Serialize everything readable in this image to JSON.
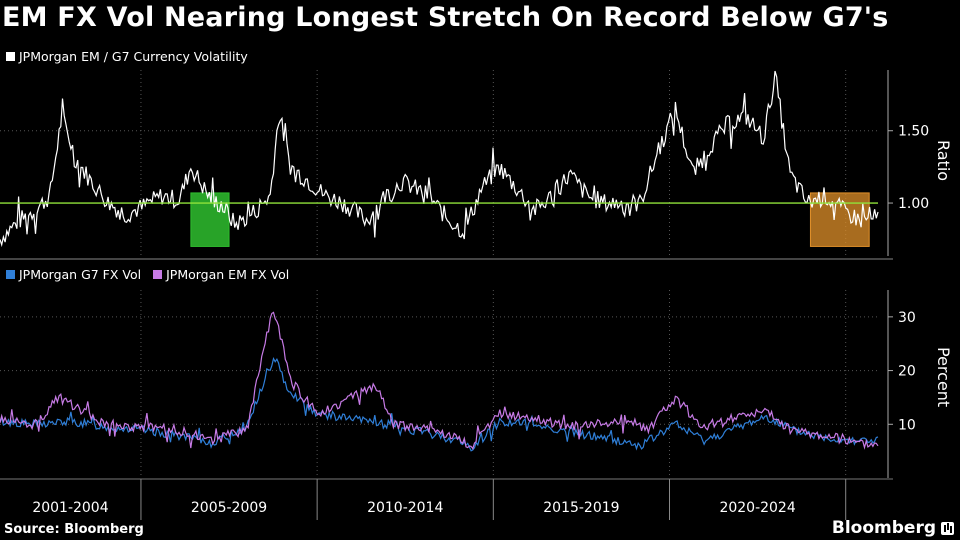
{
  "title": "EM FX Vol Nearing Longest Stretch On Record Below G7's",
  "source": "Source: Bloomberg",
  "brand": "Bloomberg",
  "colors": {
    "ratio": "#ffffff",
    "g7": "#2f7fd8",
    "em": "#c77be6",
    "refline": "#8fe33a",
    "green_box": "#2fbf2f",
    "orange_box": "#e0902a"
  },
  "chart_data": [
    {
      "type": "line",
      "legend": [
        "JPMorgan EM / G7 Currency Volatility"
      ],
      "ylabel": "Ratio",
      "y_ticks": [
        "1.50",
        "1.00"
      ],
      "ylim": [
        0.62,
        1.92
      ],
      "reference_line": 1.0,
      "x_range": [
        "2001-01",
        "2025-12"
      ],
      "series": [
        {
          "name": "JPMorgan EM / G7 Currency Volatility",
          "points": [
            [
              "2001-01",
              0.75
            ],
            [
              "2001-07",
              0.87
            ],
            [
              "2002-01",
              0.95
            ],
            [
              "2002-06",
              1.05
            ],
            [
              "2002-10",
              1.6
            ],
            [
              "2003-03",
              1.3
            ],
            [
              "2003-08",
              1.15
            ],
            [
              "2004-02",
              1.0
            ],
            [
              "2004-08",
              0.92
            ],
            [
              "2005-02",
              0.98
            ],
            [
              "2005-08",
              1.05
            ],
            [
              "2006-02",
              1.02
            ],
            [
              "2006-06",
              1.25
            ],
            [
              "2006-12",
              1.05
            ],
            [
              "2007-06",
              0.95
            ],
            [
              "2007-09",
              0.85
            ],
            [
              "2008-03",
              0.93
            ],
            [
              "2008-09",
              1.05
            ],
            [
              "2008-12",
              1.62
            ],
            [
              "2009-04",
              1.25
            ],
            [
              "2009-10",
              1.15
            ],
            [
              "2010-04",
              1.05
            ],
            [
              "2010-10",
              1.0
            ],
            [
              "2011-06",
              0.88
            ],
            [
              "2011-12",
              1.05
            ],
            [
              "2012-06",
              1.15
            ],
            [
              "2013-03",
              1.05
            ],
            [
              "2013-09",
              0.9
            ],
            [
              "2014-03",
              0.8
            ],
            [
              "2014-09",
              1.1
            ],
            [
              "2015-03",
              1.25
            ],
            [
              "2015-09",
              1.1
            ],
            [
              "2016-03",
              0.95
            ],
            [
              "2016-09",
              1.05
            ],
            [
              "2017-03",
              1.2
            ],
            [
              "2017-09",
              1.05
            ],
            [
              "2018-03",
              1.0
            ],
            [
              "2018-09",
              1.0
            ],
            [
              "2019-03",
              1.0
            ],
            [
              "2019-09",
              1.35
            ],
            [
              "2020-03",
              1.65
            ],
            [
              "2020-09",
              1.2
            ],
            [
              "2021-03",
              1.4
            ],
            [
              "2021-09",
              1.55
            ],
            [
              "2022-03",
              1.6
            ],
            [
              "2022-09",
              1.45
            ],
            [
              "2023-01",
              1.88
            ],
            [
              "2023-06",
              1.2
            ],
            [
              "2023-12",
              1.0
            ],
            [
              "2024-06",
              1.05
            ],
            [
              "2024-12",
              0.95
            ],
            [
              "2025-06",
              0.88
            ],
            [
              "2025-12",
              0.9
            ]
          ]
        }
      ],
      "highlights": [
        {
          "from": "2006-06",
          "to": "2007-07",
          "color": "green"
        },
        {
          "from": "2024-01",
          "to": "2025-09",
          "color": "orange"
        }
      ]
    },
    {
      "type": "line",
      "ylabel": "Percent",
      "y_ticks": [
        "30",
        "20",
        "10"
      ],
      "ylim": [
        0,
        35
      ],
      "x_labels": [
        "2001-2004",
        "2005-2009",
        "2010-2014",
        "2015-2019",
        "2020-2024"
      ],
      "series": [
        {
          "name": "JPMorgan G7 FX Vol",
          "points": [
            [
              "2001-01",
              10.5
            ],
            [
              "2002-01",
              10
            ],
            [
              "2003-01",
              10.5
            ],
            [
              "2004-01",
              9.5
            ],
            [
              "2005-01",
              9
            ],
            [
              "2006-01",
              8
            ],
            [
              "2007-01",
              6.5
            ],
            [
              "2008-01",
              9.5
            ],
            [
              "2008-10",
              22
            ],
            [
              "2009-04",
              16
            ],
            [
              "2010-01",
              12
            ],
            [
              "2011-01",
              11
            ],
            [
              "2012-01",
              10
            ],
            [
              "2013-01",
              8.5
            ],
            [
              "2014-01",
              7
            ],
            [
              "2014-06",
              5.5
            ],
            [
              "2015-03",
              10.5
            ],
            [
              "2016-03",
              10
            ],
            [
              "2017-03",
              8.5
            ],
            [
              "2018-03",
              7.5
            ],
            [
              "2019-03",
              6
            ],
            [
              "2020-03",
              10
            ],
            [
              "2021-01",
              7
            ],
            [
              "2022-03",
              10
            ],
            [
              "2022-10",
              11.5
            ],
            [
              "2023-06",
              9
            ],
            [
              "2024-06",
              7.5
            ],
            [
              "2025-06",
              7
            ]
          ]
        },
        {
          "name": "JPMorgan EM FX Vol",
          "points": [
            [
              "2001-01",
              11
            ],
            [
              "2002-01",
              10
            ],
            [
              "2002-09",
              15
            ],
            [
              "2003-06",
              12
            ],
            [
              "2004-01",
              10
            ],
            [
              "2005-01",
              9.5
            ],
            [
              "2006-01",
              9
            ],
            [
              "2007-01",
              7
            ],
            [
              "2008-01",
              9
            ],
            [
              "2008-10",
              32
            ],
            [
              "2009-04",
              18
            ],
            [
              "2010-01",
              12
            ],
            [
              "2011-09",
              17
            ],
            [
              "2012-03",
              10
            ],
            [
              "2013-06",
              9
            ],
            [
              "2014-06",
              6
            ],
            [
              "2015-03",
              12
            ],
            [
              "2016-03",
              11
            ],
            [
              "2017-03",
              9.5
            ],
            [
              "2018-09",
              11
            ],
            [
              "2019-06",
              9
            ],
            [
              "2020-03",
              15
            ],
            [
              "2021-01",
              9
            ],
            [
              "2022-03",
              12
            ],
            [
              "2022-10",
              12.5
            ],
            [
              "2023-06",
              9
            ],
            [
              "2024-06",
              8
            ],
            [
              "2025-06",
              6.5
            ]
          ]
        }
      ]
    }
  ]
}
